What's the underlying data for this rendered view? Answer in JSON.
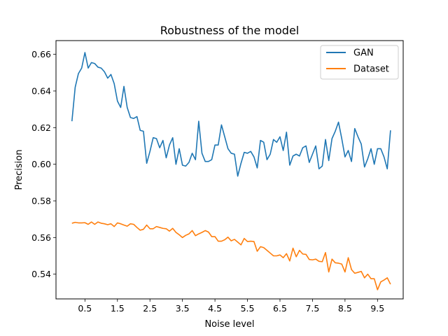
{
  "chart_data": {
    "type": "line",
    "title": "Robustness of the model",
    "xlabel": "Noise level",
    "ylabel": "Precision",
    "xlim": [
      -0.39,
      10.29
    ],
    "ylim": [
      0.5265,
      0.6675
    ],
    "xticks": [
      0.5,
      1.5,
      2.5,
      3.5,
      4.5,
      5.5,
      6.5,
      7.5,
      8.5,
      9.5
    ],
    "xtick_labels": [
      "0.5",
      "1.5",
      "2.5",
      "3.5",
      "4.5",
      "5.5",
      "6.5",
      "7.5",
      "8.5",
      "9.5"
    ],
    "yticks": [
      0.54,
      0.56,
      0.58,
      0.6,
      0.62,
      0.64,
      0.66
    ],
    "ytick_labels": [
      "0.54",
      "0.56",
      "0.58",
      "0.60",
      "0.62",
      "0.64",
      "0.66"
    ],
    "grid": false,
    "legend_position": "top-right",
    "x": [
      0.1,
      0.2,
      0.3,
      0.4,
      0.5,
      0.6,
      0.7,
      0.8,
      0.9,
      1.0,
      1.1,
      1.2,
      1.3,
      1.4,
      1.5,
      1.6,
      1.7,
      1.8,
      1.9,
      2.0,
      2.1,
      2.2,
      2.3,
      2.4,
      2.5,
      2.6,
      2.7,
      2.8,
      2.9,
      3.0,
      3.1,
      3.2,
      3.3,
      3.4,
      3.5,
      3.6,
      3.7,
      3.8,
      3.9,
      4.0,
      4.1,
      4.2,
      4.3,
      4.4,
      4.5,
      4.6,
      4.7,
      4.8,
      4.9,
      5.0,
      5.1,
      5.2,
      5.3,
      5.4,
      5.5,
      5.6,
      5.7,
      5.8,
      5.9,
      6.0,
      6.1,
      6.2,
      6.3,
      6.4,
      6.5,
      6.6,
      6.7,
      6.8,
      6.9,
      7.0,
      7.1,
      7.2,
      7.3,
      7.4,
      7.5,
      7.6,
      7.7,
      7.8,
      7.9,
      8.0,
      8.1,
      8.2,
      8.3,
      8.4,
      8.5,
      8.6,
      8.7,
      8.8,
      8.9,
      9.0,
      9.1,
      9.2,
      9.3,
      9.4,
      9.5,
      9.6,
      9.7,
      9.8,
      9.9
    ],
    "series": [
      {
        "name": "GAN",
        "color": "#1f77b4",
        "values": [
          0.6235,
          0.642,
          0.6495,
          0.6525,
          0.661,
          0.6525,
          0.6555,
          0.655,
          0.653,
          0.6525,
          0.6505,
          0.647,
          0.649,
          0.644,
          0.6345,
          0.631,
          0.6425,
          0.631,
          0.6255,
          0.625,
          0.626,
          0.6185,
          0.618,
          0.6005,
          0.607,
          0.6145,
          0.614,
          0.609,
          0.613,
          0.6035,
          0.6105,
          0.6145,
          0.6,
          0.6085,
          0.5995,
          0.599,
          0.601,
          0.606,
          0.6025,
          0.6235,
          0.606,
          0.6015,
          0.6015,
          0.6025,
          0.6105,
          0.6105,
          0.6215,
          0.615,
          0.6085,
          0.606,
          0.6055,
          0.5935,
          0.6005,
          0.6065,
          0.606,
          0.607,
          0.604,
          0.598,
          0.613,
          0.612,
          0.6025,
          0.6055,
          0.6135,
          0.612,
          0.615,
          0.6075,
          0.6175,
          0.5995,
          0.6045,
          0.6055,
          0.6045,
          0.609,
          0.61,
          0.601,
          0.6055,
          0.61,
          0.5975,
          0.599,
          0.6135,
          0.602,
          0.614,
          0.618,
          0.623,
          0.614,
          0.604,
          0.6075,
          0.6015,
          0.6195,
          0.615,
          0.611,
          0.5985,
          0.603,
          0.6085,
          0.6,
          0.6085,
          0.6085,
          0.604,
          0.5975,
          0.6185
        ]
      },
      {
        "name": "Dataset",
        "color": "#ff7f0e",
        "values": [
          0.5678,
          0.5683,
          0.568,
          0.568,
          0.5681,
          0.5672,
          0.5685,
          0.5672,
          0.5685,
          0.5678,
          0.5675,
          0.567,
          0.5675,
          0.566,
          0.568,
          0.5675,
          0.5668,
          0.5662,
          0.5675,
          0.5672,
          0.5655,
          0.564,
          0.5645,
          0.5668,
          0.5648,
          0.5648,
          0.566,
          0.5655,
          0.565,
          0.5648,
          0.5635,
          0.565,
          0.5628,
          0.5615,
          0.56,
          0.5612,
          0.562,
          0.5638,
          0.561,
          0.562,
          0.5628,
          0.5638,
          0.563,
          0.5605,
          0.5605,
          0.558,
          0.558,
          0.5588,
          0.5602,
          0.5582,
          0.559,
          0.5575,
          0.556,
          0.5595,
          0.5578,
          0.558,
          0.5578,
          0.5525,
          0.555,
          0.5545,
          0.553,
          0.5515,
          0.55,
          0.55,
          0.5505,
          0.549,
          0.5512,
          0.5472,
          0.5542,
          0.5495,
          0.553,
          0.551,
          0.5508,
          0.548,
          0.5478,
          0.5482,
          0.547,
          0.5468,
          0.5518,
          0.5412,
          0.5482,
          0.5462,
          0.546,
          0.5455,
          0.5412,
          0.549,
          0.5425,
          0.5405,
          0.541,
          0.5415,
          0.538,
          0.54,
          0.5375,
          0.5375,
          0.5315,
          0.5358,
          0.5368,
          0.538,
          0.5345
        ]
      }
    ]
  }
}
